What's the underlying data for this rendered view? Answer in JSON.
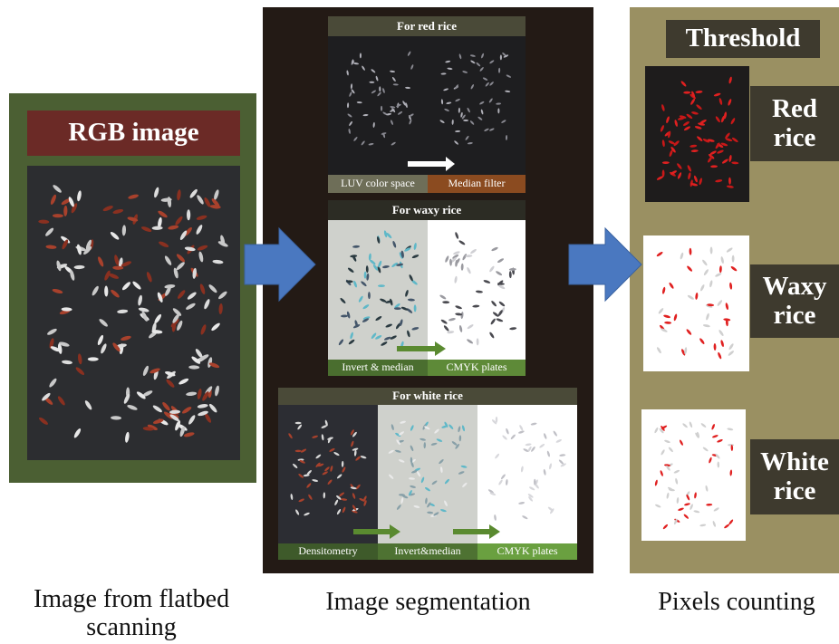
{
  "left": {
    "title": "RGB image",
    "caption": "Image from flatbed scanning"
  },
  "middle": {
    "caption": "Image segmentation",
    "red": {
      "title": "For red rice",
      "steps": [
        "LUV color space",
        "Median filter"
      ]
    },
    "waxy": {
      "title": "For waxy rice",
      "steps": [
        "Invert & median",
        "CMYK plates"
      ]
    },
    "white": {
      "title": "For white rice",
      "steps": [
        "Densitometry",
        "Invert&median",
        "CMYK plates"
      ]
    }
  },
  "right": {
    "title": "Threshold",
    "caption": "Pixels counting",
    "labels": [
      "Red rice",
      "Waxy rice",
      "White rice"
    ]
  }
}
